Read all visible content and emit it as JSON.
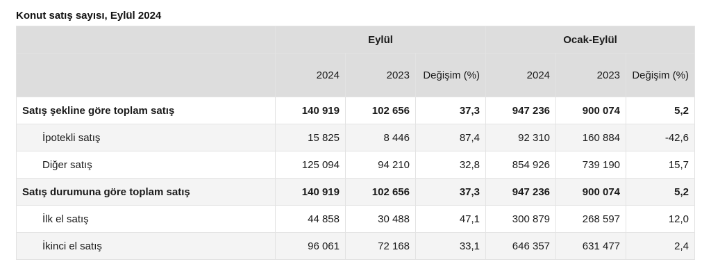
{
  "title": "Konut satış sayısı, Eylül 2024",
  "header": {
    "groups": [
      "Eylül",
      "Ocak-Eylül"
    ],
    "columns": [
      "2024",
      "2023",
      "Değişim (%)",
      "2024",
      "2023",
      "Değişim (%)"
    ]
  },
  "rows": [
    {
      "label": "Satış şekline göre toplam satış",
      "values": [
        "140 919",
        "102 656",
        "37,3",
        "947 236",
        "900 074",
        "5,2"
      ]
    },
    {
      "label": "İpotekli satış",
      "values": [
        "15 825",
        "8 446",
        "87,4",
        "92 310",
        "160 884",
        "-42,6"
      ]
    },
    {
      "label": "Diğer satış",
      "values": [
        "125 094",
        "94 210",
        "32,8",
        "854 926",
        "739 190",
        "15,7"
      ]
    },
    {
      "label": "Satış durumuna göre toplam satış",
      "values": [
        "140 919",
        "102 656",
        "37,3",
        "947 236",
        "900 074",
        "5,2"
      ]
    },
    {
      "label": "İlk el satış",
      "values": [
        "44 858",
        "30 488",
        "47,1",
        "300 879",
        "268 597",
        "12,0"
      ]
    },
    {
      "label": "İkinci el satış",
      "values": [
        "96 061",
        "72 168",
        "33,1",
        "646 357",
        "631 477",
        "2,4"
      ]
    }
  ]
}
